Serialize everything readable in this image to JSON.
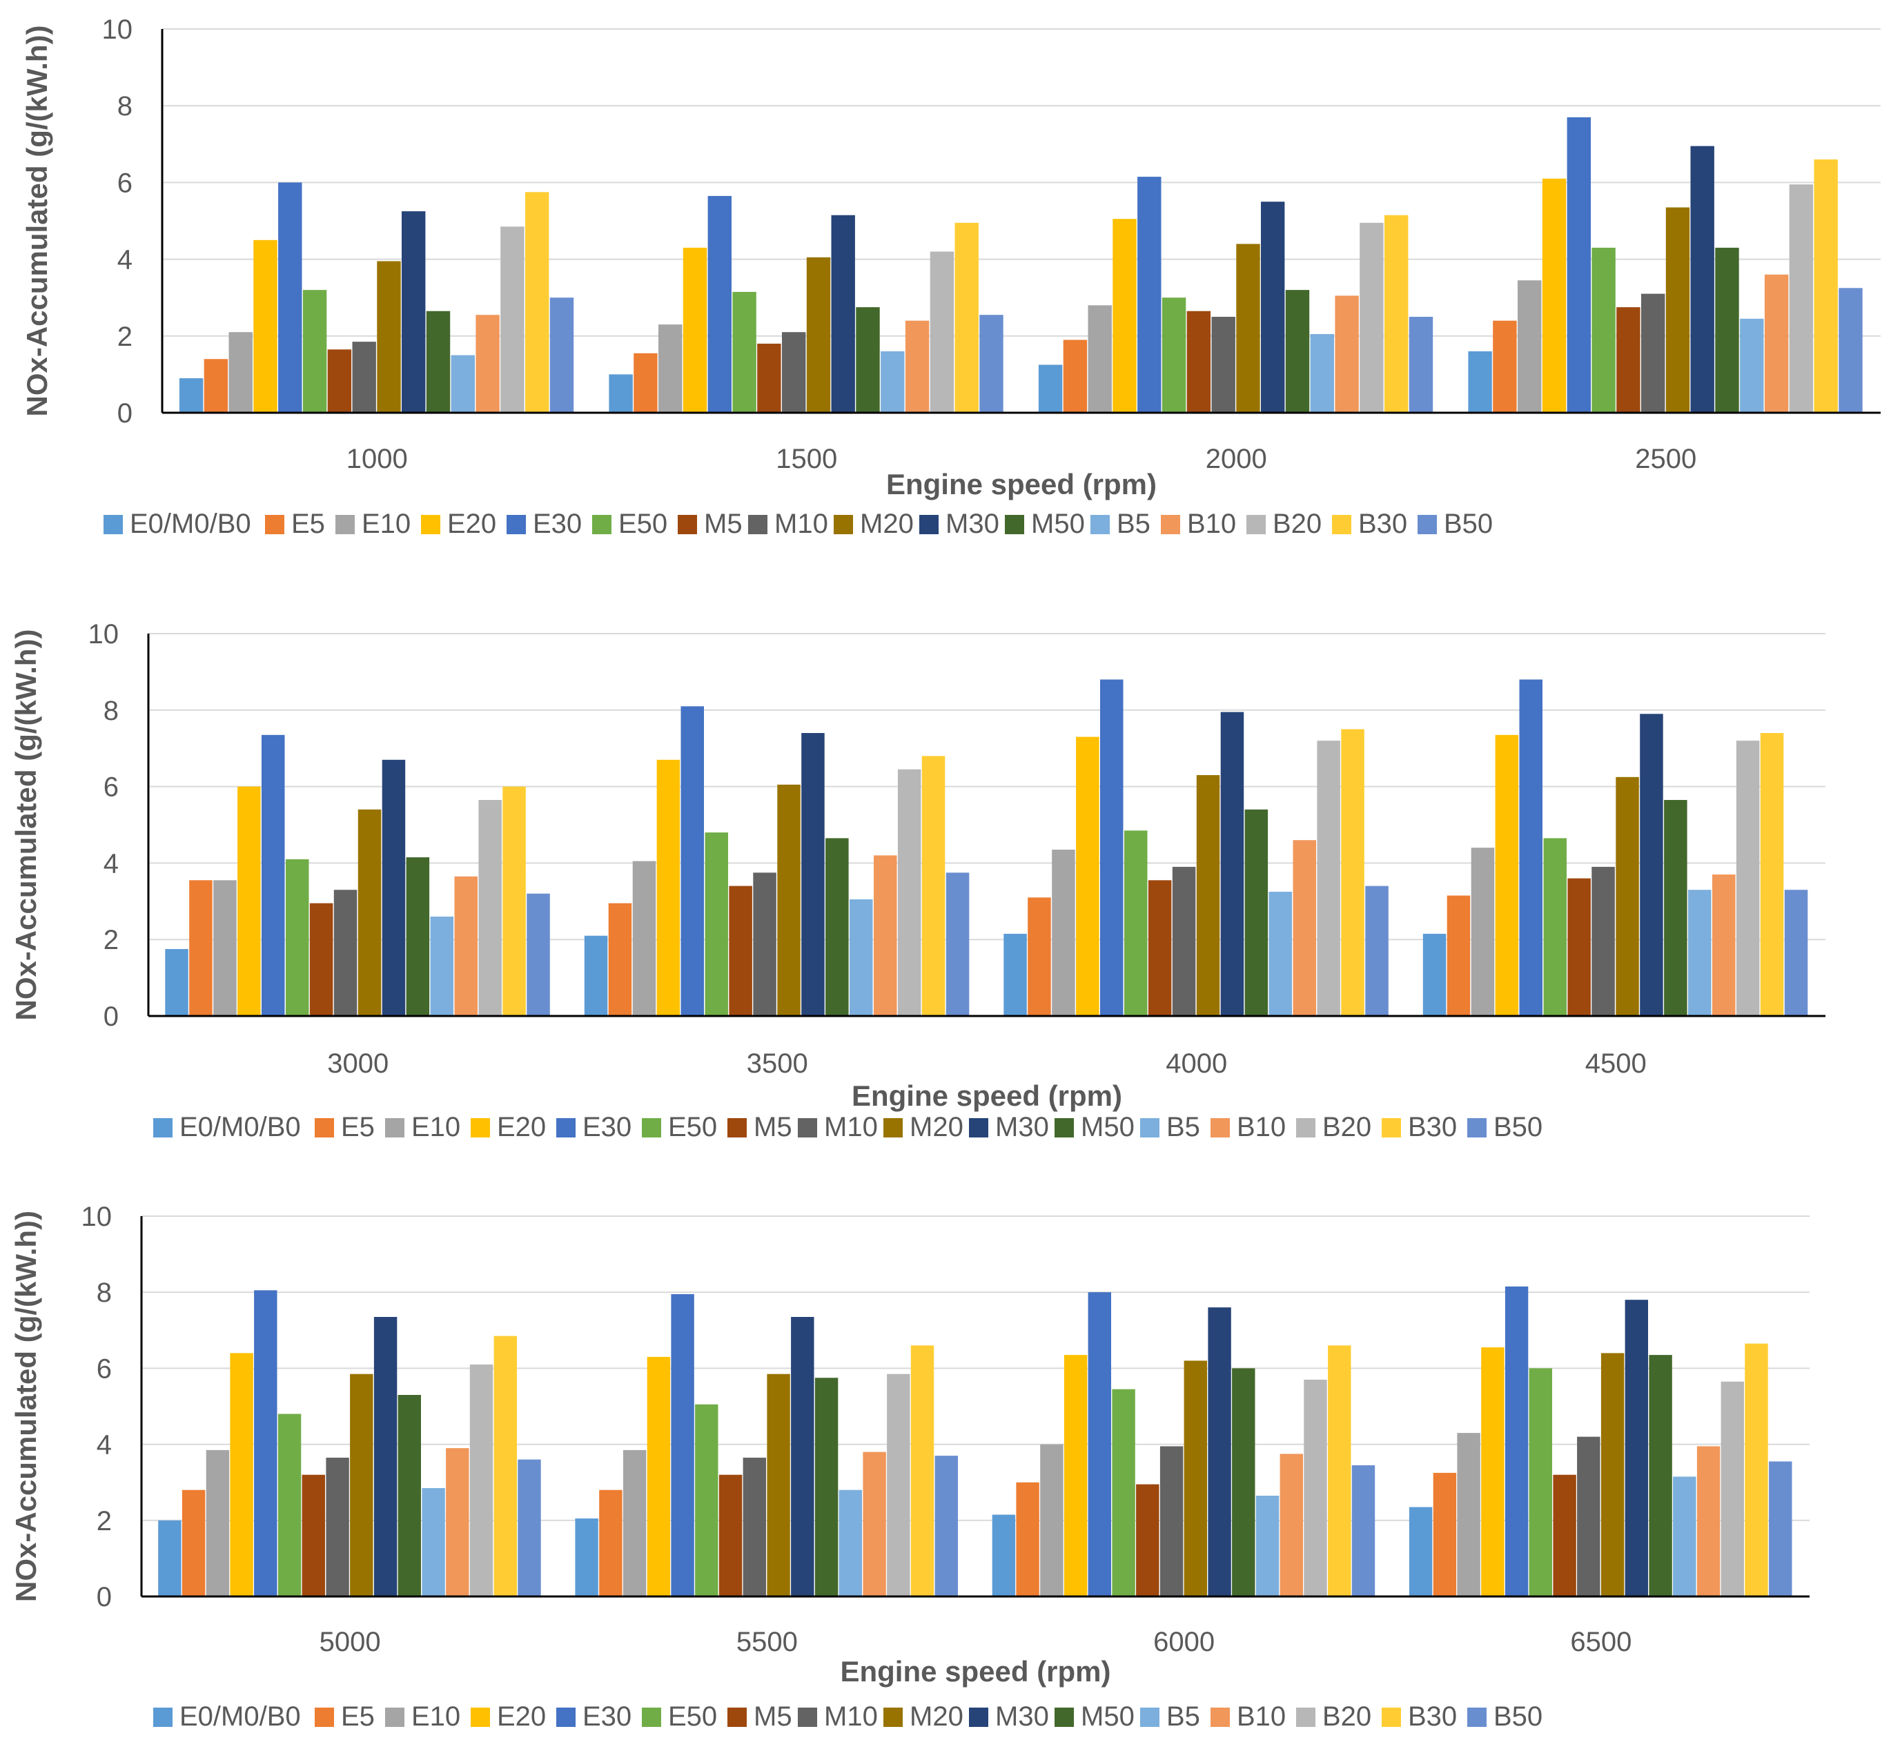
{
  "series_names": [
    "E0/M0/B0",
    "E5",
    "E10",
    "E20",
    "E30",
    "E50",
    "M5",
    "M10",
    "M20",
    "M30",
    "M50",
    "B5",
    "B10",
    "B20",
    "B30",
    "B50"
  ],
  "colors": {
    "E0/M0/B0": "#5B9BD5",
    "E5": "#ED7D31",
    "E10": "#A5A5A5",
    "E20": "#FFC000",
    "E30": "#4472C4",
    "E50": "#70AD47",
    "M5": "#9E480E",
    "M10": "#636363",
    "M20": "#997300",
    "M30": "#264478",
    "M50": "#43682B",
    "B5": "#7CAFDD",
    "B10": "#F1975A",
    "B20": "#B7B7B7",
    "B30": "#FFCD33",
    "B50": "#698ED0"
  },
  "chart_data": [
    {
      "type": "bar",
      "title": "",
      "xlabel": "Engine speed (rpm)",
      "ylabel": "NOx-Accumulated (g/(kW.h))",
      "ylim": [
        0,
        10
      ],
      "yticks": [
        "0",
        "2",
        "4",
        "6",
        "8",
        "10"
      ],
      "grid": true,
      "legend": "bottom",
      "categories": [
        "1000",
        "1500",
        "2000",
        "2500"
      ],
      "series": [
        {
          "name": "E0/M0/B0",
          "values": [
            0.9,
            1.0,
            1.25,
            1.6
          ]
        },
        {
          "name": "E5",
          "values": [
            1.4,
            1.55,
            1.9,
            2.4
          ]
        },
        {
          "name": "E10",
          "values": [
            2.1,
            2.3,
            2.8,
            3.45
          ]
        },
        {
          "name": "E20",
          "values": [
            4.5,
            4.3,
            5.05,
            6.1
          ]
        },
        {
          "name": "E30",
          "values": [
            6.0,
            5.65,
            6.15,
            7.7
          ]
        },
        {
          "name": "E50",
          "values": [
            3.2,
            3.15,
            3.0,
            4.3
          ]
        },
        {
          "name": "M5",
          "values": [
            1.65,
            1.8,
            2.65,
            2.75
          ]
        },
        {
          "name": "M10",
          "values": [
            1.85,
            2.1,
            2.5,
            3.1
          ]
        },
        {
          "name": "M20",
          "values": [
            3.95,
            4.05,
            4.4,
            5.35
          ]
        },
        {
          "name": "M30",
          "values": [
            5.25,
            5.15,
            5.5,
            6.95
          ]
        },
        {
          "name": "M50",
          "values": [
            2.65,
            2.75,
            3.2,
            4.3
          ]
        },
        {
          "name": "B5",
          "values": [
            1.5,
            1.6,
            2.05,
            2.45
          ]
        },
        {
          "name": "B10",
          "values": [
            2.55,
            2.4,
            3.05,
            3.6
          ]
        },
        {
          "name": "B20",
          "values": [
            4.85,
            4.2,
            4.95,
            5.95
          ]
        },
        {
          "name": "B30",
          "values": [
            5.75,
            4.95,
            5.15,
            6.6
          ]
        },
        {
          "name": "B50",
          "values": [
            3.0,
            2.55,
            2.5,
            3.25
          ]
        }
      ]
    },
    {
      "type": "bar",
      "title": "",
      "xlabel": "Engine speed (rpm)",
      "ylabel": "NOx-Accumulated (g/(kW.h))",
      "ylim": [
        0,
        10
      ],
      "yticks": [
        "0",
        "2",
        "4",
        "6",
        "8",
        "10"
      ],
      "grid": true,
      "legend": "bottom",
      "categories": [
        "3000",
        "3500",
        "4000",
        "4500"
      ],
      "series": [
        {
          "name": "E0/M0/B0",
          "values": [
            1.75,
            2.1,
            2.15,
            2.15
          ]
        },
        {
          "name": "E5",
          "values": [
            3.55,
            2.95,
            3.1,
            3.15
          ]
        },
        {
          "name": "E10",
          "values": [
            3.55,
            4.05,
            4.35,
            4.4
          ]
        },
        {
          "name": "E20",
          "values": [
            6.0,
            6.7,
            7.3,
            7.35
          ]
        },
        {
          "name": "E30",
          "values": [
            7.35,
            8.1,
            8.8,
            8.8
          ]
        },
        {
          "name": "E50",
          "values": [
            4.1,
            4.8,
            4.85,
            4.65
          ]
        },
        {
          "name": "M5",
          "values": [
            2.95,
            3.4,
            3.55,
            3.6
          ]
        },
        {
          "name": "M10",
          "values": [
            3.3,
            3.75,
            3.9,
            3.9
          ]
        },
        {
          "name": "M20",
          "values": [
            5.4,
            6.05,
            6.3,
            6.25
          ]
        },
        {
          "name": "M30",
          "values": [
            6.7,
            7.4,
            7.95,
            7.9
          ]
        },
        {
          "name": "M50",
          "values": [
            4.15,
            4.65,
            5.4,
            5.65
          ]
        },
        {
          "name": "B5",
          "values": [
            2.6,
            3.05,
            3.25,
            3.3
          ]
        },
        {
          "name": "B10",
          "values": [
            3.65,
            4.2,
            4.6,
            3.7
          ]
        },
        {
          "name": "B20",
          "values": [
            5.65,
            6.45,
            7.2,
            7.2
          ]
        },
        {
          "name": "B30",
          "values": [
            6.0,
            6.8,
            7.5,
            7.4
          ]
        },
        {
          "name": "B50",
          "values": [
            3.2,
            3.75,
            3.4,
            3.3
          ]
        }
      ]
    },
    {
      "type": "bar",
      "title": "",
      "xlabel": "Engine speed (rpm)",
      "ylabel": "NOx-Accumulated (g/(kW.h))",
      "ylim": [
        0,
        10
      ],
      "yticks": [
        "0",
        "2",
        "4",
        "6",
        "8",
        "10"
      ],
      "grid": true,
      "legend": "bottom",
      "categories": [
        "5000",
        "5500",
        "6000",
        "6500"
      ],
      "series": [
        {
          "name": "E0/M0/B0",
          "values": [
            2.0,
            2.05,
            2.15,
            2.35
          ]
        },
        {
          "name": "E5",
          "values": [
            2.8,
            2.8,
            3.0,
            3.25
          ]
        },
        {
          "name": "E10",
          "values": [
            3.85,
            3.85,
            4.0,
            4.3
          ]
        },
        {
          "name": "E20",
          "values": [
            6.4,
            6.3,
            6.35,
            6.55
          ]
        },
        {
          "name": "E30",
          "values": [
            8.05,
            7.95,
            8.0,
            8.15
          ]
        },
        {
          "name": "E50",
          "values": [
            4.8,
            5.05,
            5.45,
            6.0
          ]
        },
        {
          "name": "M5",
          "values": [
            3.2,
            3.2,
            2.95,
            3.2
          ]
        },
        {
          "name": "M10",
          "values": [
            3.65,
            3.65,
            3.95,
            4.2
          ]
        },
        {
          "name": "M20",
          "values": [
            5.85,
            5.85,
            6.2,
            6.4
          ]
        },
        {
          "name": "M30",
          "values": [
            7.35,
            7.35,
            7.6,
            7.8
          ]
        },
        {
          "name": "M50",
          "values": [
            5.3,
            5.75,
            6.0,
            6.35
          ]
        },
        {
          "name": "B5",
          "values": [
            2.85,
            2.8,
            2.65,
            3.15
          ]
        },
        {
          "name": "B10",
          "values": [
            3.9,
            3.8,
            3.75,
            3.95
          ]
        },
        {
          "name": "B20",
          "values": [
            6.1,
            5.85,
            5.7,
            5.65
          ]
        },
        {
          "name": "B30",
          "values": [
            6.85,
            6.6,
            6.6,
            6.65
          ]
        },
        {
          "name": "B50",
          "values": [
            3.6,
            3.7,
            3.45,
            3.55
          ]
        }
      ]
    }
  ]
}
